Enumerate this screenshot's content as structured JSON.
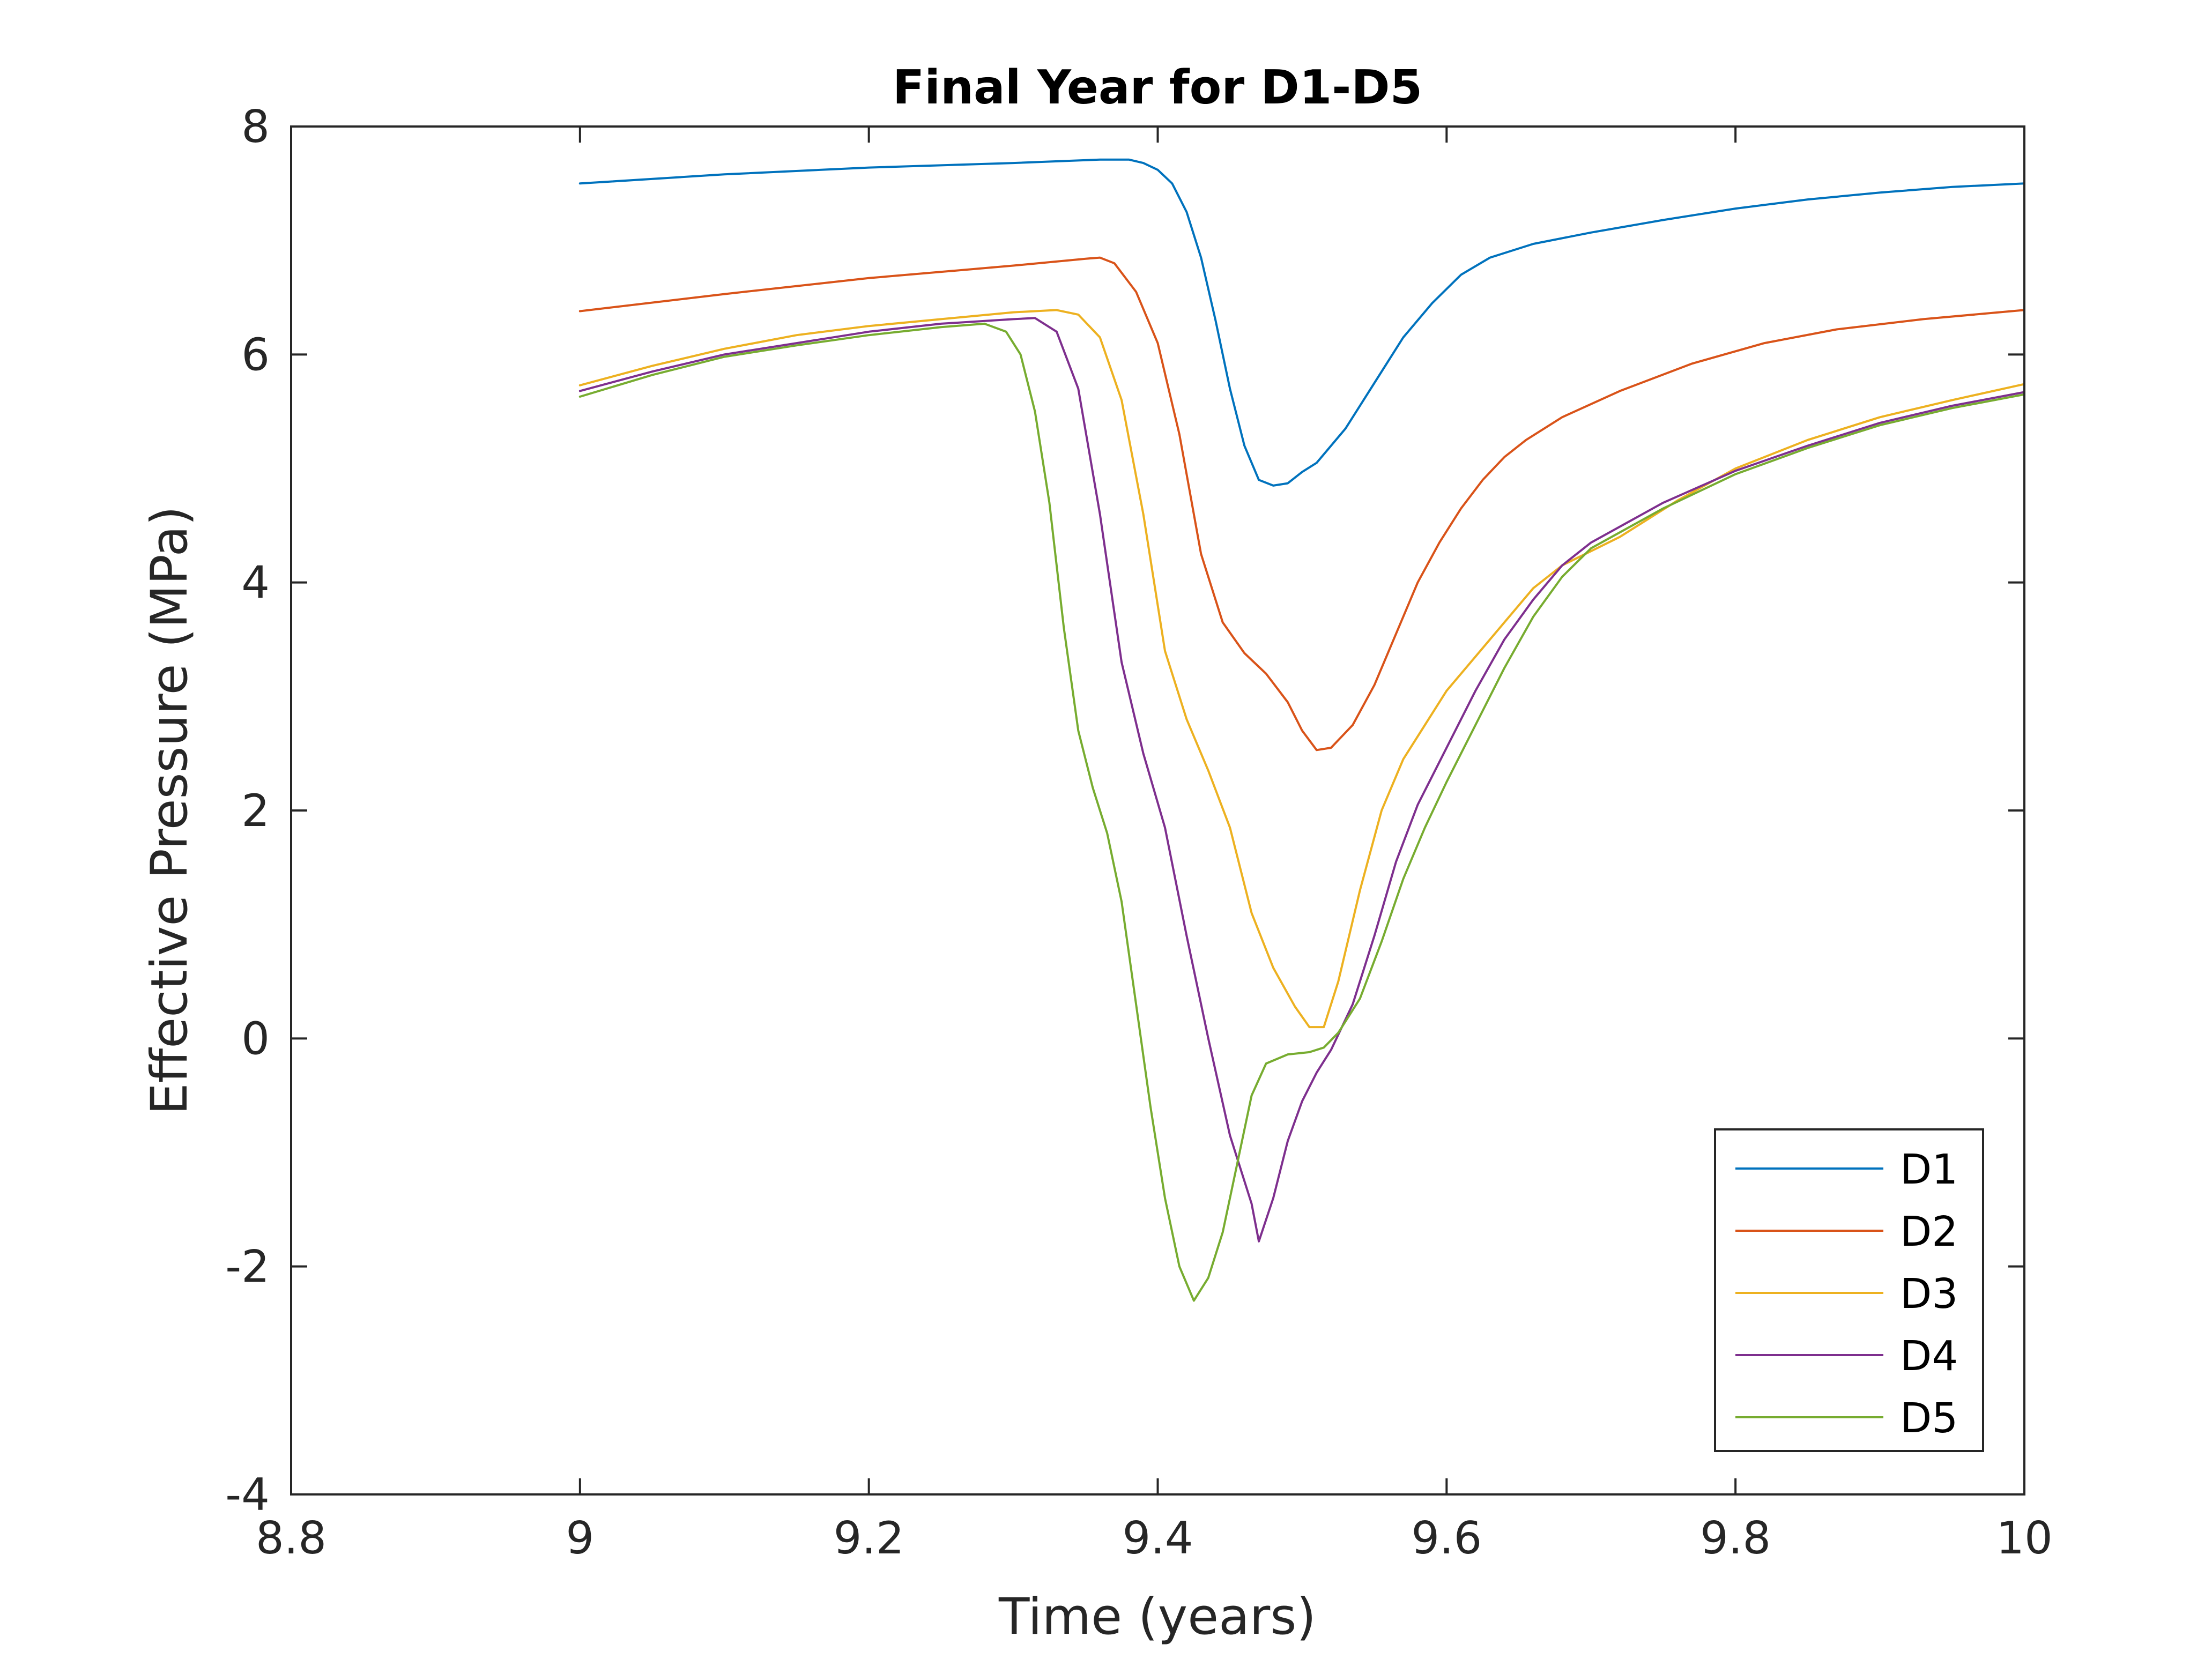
{
  "chart_data": {
    "type": "line",
    "title": "Final Year for D1-D5",
    "xlabel": "Time (years)",
    "ylabel": "Effective Pressure (MPa)",
    "xlim": [
      8.8,
      10
    ],
    "ylim": [
      -4,
      8
    ],
    "xticks": [
      8.8,
      9,
      9.2,
      9.4,
      9.6,
      9.8,
      10
    ],
    "xtick_labels": [
      "8.8",
      "9",
      "9.2",
      "9.4",
      "9.6",
      "9.8",
      "10"
    ],
    "yticks": [
      -4,
      -2,
      0,
      2,
      4,
      6,
      8
    ],
    "ytick_labels": [
      "-4",
      "-2",
      "0",
      "2",
      "4",
      "6",
      "8"
    ],
    "grid": false,
    "legend_position": "bottom-right",
    "series": [
      {
        "name": "D1",
        "color": "#0072BD",
        "points": [
          [
            9.0,
            7.5
          ],
          [
            9.1,
            7.58
          ],
          [
            9.2,
            7.64
          ],
          [
            9.3,
            7.68
          ],
          [
            9.36,
            7.71
          ],
          [
            9.38,
            7.71
          ],
          [
            9.39,
            7.68
          ],
          [
            9.4,
            7.62
          ],
          [
            9.41,
            7.5
          ],
          [
            9.42,
            7.25
          ],
          [
            9.43,
            6.85
          ],
          [
            9.44,
            6.3
          ],
          [
            9.45,
            5.7
          ],
          [
            9.46,
            5.2
          ],
          [
            9.47,
            4.9
          ],
          [
            9.48,
            4.85
          ],
          [
            9.49,
            4.87
          ],
          [
            9.5,
            4.97
          ],
          [
            9.51,
            5.05
          ],
          [
            9.53,
            5.35
          ],
          [
            9.55,
            5.75
          ],
          [
            9.57,
            6.15
          ],
          [
            9.59,
            6.45
          ],
          [
            9.61,
            6.7
          ],
          [
            9.63,
            6.85
          ],
          [
            9.66,
            6.97
          ],
          [
            9.7,
            7.07
          ],
          [
            9.75,
            7.18
          ],
          [
            9.8,
            7.28
          ],
          [
            9.85,
            7.36
          ],
          [
            9.9,
            7.42
          ],
          [
            9.95,
            7.47
          ],
          [
            10.0,
            7.5
          ]
        ]
      },
      {
        "name": "D2",
        "color": "#D95319",
        "points": [
          [
            9.0,
            6.38
          ],
          [
            9.1,
            6.53
          ],
          [
            9.2,
            6.67
          ],
          [
            9.3,
            6.78
          ],
          [
            9.35,
            6.84
          ],
          [
            9.36,
            6.85
          ],
          [
            9.37,
            6.8
          ],
          [
            9.385,
            6.55
          ],
          [
            9.4,
            6.1
          ],
          [
            9.415,
            5.3
          ],
          [
            9.43,
            4.25
          ],
          [
            9.445,
            3.65
          ],
          [
            9.46,
            3.38
          ],
          [
            9.475,
            3.2
          ],
          [
            9.49,
            2.95
          ],
          [
            9.5,
            2.7
          ],
          [
            9.51,
            2.53
          ],
          [
            9.52,
            2.55
          ],
          [
            9.535,
            2.75
          ],
          [
            9.55,
            3.1
          ],
          [
            9.565,
            3.55
          ],
          [
            9.58,
            4.0
          ],
          [
            9.595,
            4.35
          ],
          [
            9.61,
            4.65
          ],
          [
            9.625,
            4.9
          ],
          [
            9.64,
            5.1
          ],
          [
            9.655,
            5.25
          ],
          [
            9.68,
            5.45
          ],
          [
            9.72,
            5.68
          ],
          [
            9.77,
            5.92
          ],
          [
            9.82,
            6.1
          ],
          [
            9.87,
            6.22
          ],
          [
            9.93,
            6.31
          ],
          [
            10.0,
            6.39
          ]
        ]
      },
      {
        "name": "D3",
        "color": "#EDB120",
        "points": [
          [
            9.0,
            5.73
          ],
          [
            9.05,
            5.9
          ],
          [
            9.1,
            6.05
          ],
          [
            9.15,
            6.17
          ],
          [
            9.2,
            6.25
          ],
          [
            9.25,
            6.31
          ],
          [
            9.3,
            6.37
          ],
          [
            9.33,
            6.39
          ],
          [
            9.345,
            6.35
          ],
          [
            9.36,
            6.15
          ],
          [
            9.375,
            5.6
          ],
          [
            9.39,
            4.6
          ],
          [
            9.405,
            3.4
          ],
          [
            9.42,
            2.8
          ],
          [
            9.435,
            2.35
          ],
          [
            9.45,
            1.85
          ],
          [
            9.465,
            1.1
          ],
          [
            9.48,
            0.62
          ],
          [
            9.495,
            0.28
          ],
          [
            9.505,
            0.1
          ],
          [
            9.515,
            0.1
          ],
          [
            9.525,
            0.5
          ],
          [
            9.54,
            1.3
          ],
          [
            9.555,
            2.0
          ],
          [
            9.57,
            2.45
          ],
          [
            9.585,
            2.75
          ],
          [
            9.6,
            3.05
          ],
          [
            9.62,
            3.35
          ],
          [
            9.64,
            3.65
          ],
          [
            9.66,
            3.95
          ],
          [
            9.68,
            4.15
          ],
          [
            9.72,
            4.4
          ],
          [
            9.76,
            4.72
          ],
          [
            9.8,
            5.0
          ],
          [
            9.85,
            5.25
          ],
          [
            9.9,
            5.45
          ],
          [
            9.95,
            5.6
          ],
          [
            10.0,
            5.74
          ]
        ]
      },
      {
        "name": "D4",
        "color": "#7E2F8E",
        "points": [
          [
            9.0,
            5.68
          ],
          [
            9.05,
            5.85
          ],
          [
            9.1,
            6.0
          ],
          [
            9.15,
            6.1
          ],
          [
            9.2,
            6.2
          ],
          [
            9.25,
            6.27
          ],
          [
            9.3,
            6.31
          ],
          [
            9.315,
            6.32
          ],
          [
            9.33,
            6.2
          ],
          [
            9.345,
            5.7
          ],
          [
            9.36,
            4.6
          ],
          [
            9.375,
            3.3
          ],
          [
            9.39,
            2.5
          ],
          [
            9.405,
            1.85
          ],
          [
            9.42,
            0.9
          ],
          [
            9.435,
            0.0
          ],
          [
            9.45,
            -0.85
          ],
          [
            9.465,
            -1.45
          ],
          [
            9.47,
            -1.78
          ],
          [
            9.48,
            -1.4
          ],
          [
            9.49,
            -0.9
          ],
          [
            9.5,
            -0.55
          ],
          [
            9.51,
            -0.3
          ],
          [
            9.52,
            -0.1
          ],
          [
            9.535,
            0.3
          ],
          [
            9.55,
            0.9
          ],
          [
            9.565,
            1.55
          ],
          [
            9.58,
            2.05
          ],
          [
            9.6,
            2.55
          ],
          [
            9.62,
            3.05
          ],
          [
            9.64,
            3.5
          ],
          [
            9.66,
            3.85
          ],
          [
            9.68,
            4.15
          ],
          [
            9.7,
            4.35
          ],
          [
            9.75,
            4.7
          ],
          [
            9.8,
            4.98
          ],
          [
            9.85,
            5.2
          ],
          [
            9.9,
            5.4
          ],
          [
            9.95,
            5.55
          ],
          [
            10.0,
            5.67
          ]
        ]
      },
      {
        "name": "D5",
        "color": "#77AC30",
        "points": [
          [
            9.0,
            5.63
          ],
          [
            9.05,
            5.82
          ],
          [
            9.1,
            5.98
          ],
          [
            9.15,
            6.08
          ],
          [
            9.2,
            6.17
          ],
          [
            9.25,
            6.24
          ],
          [
            9.28,
            6.27
          ],
          [
            9.295,
            6.2
          ],
          [
            9.305,
            6.0
          ],
          [
            9.315,
            5.5
          ],
          [
            9.325,
            4.7
          ],
          [
            9.335,
            3.6
          ],
          [
            9.345,
            2.7
          ],
          [
            9.355,
            2.2
          ],
          [
            9.365,
            1.8
          ],
          [
            9.375,
            1.2
          ],
          [
            9.385,
            0.3
          ],
          [
            9.395,
            -0.6
          ],
          [
            9.405,
            -1.4
          ],
          [
            9.415,
            -2.0
          ],
          [
            9.425,
            -2.3
          ],
          [
            9.435,
            -2.1
          ],
          [
            9.445,
            -1.7
          ],
          [
            9.455,
            -1.1
          ],
          [
            9.465,
            -0.5
          ],
          [
            9.475,
            -0.22
          ],
          [
            9.49,
            -0.14
          ],
          [
            9.505,
            -0.12
          ],
          [
            9.515,
            -0.08
          ],
          [
            9.525,
            0.05
          ],
          [
            9.54,
            0.35
          ],
          [
            9.555,
            0.85
          ],
          [
            9.57,
            1.4
          ],
          [
            9.585,
            1.85
          ],
          [
            9.6,
            2.25
          ],
          [
            9.62,
            2.75
          ],
          [
            9.64,
            3.25
          ],
          [
            9.66,
            3.7
          ],
          [
            9.68,
            4.05
          ],
          [
            9.7,
            4.3
          ],
          [
            9.75,
            4.65
          ],
          [
            9.8,
            4.95
          ],
          [
            9.85,
            5.18
          ],
          [
            9.9,
            5.38
          ],
          [
            9.95,
            5.53
          ],
          [
            10.0,
            5.65
          ]
        ]
      }
    ]
  }
}
